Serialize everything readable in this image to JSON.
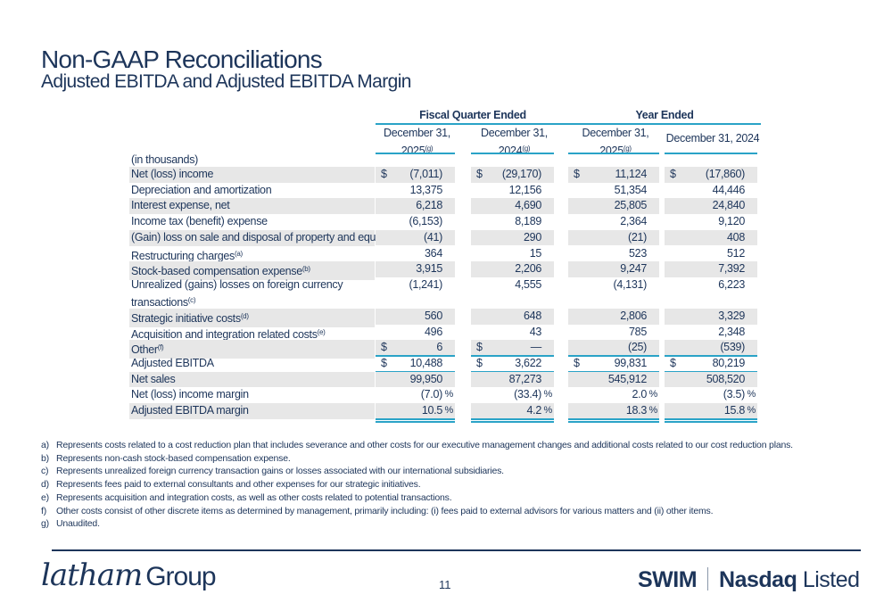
{
  "title": "Non-GAAP Reconciliations",
  "subtitle": "Adjusted EBITDA and Adjusted EBITDA Margin",
  "groups": {
    "quarter": "Fiscal Quarter Ended",
    "year": "Year Ended"
  },
  "columns": [
    {
      "line1": "December 31,",
      "line2": "2025",
      "sup": "(g)"
    },
    {
      "line1": "December 31,",
      "line2": "2024",
      "sup": "(g)"
    },
    {
      "line1": "December 31,",
      "line2": "2025",
      "sup": "(g)"
    },
    {
      "line1": "December 31, 2024",
      "line2": "",
      "sup": ""
    }
  ],
  "units_label": "(in thousands)",
  "rows": [
    {
      "label": "Net (loss) income",
      "sup": "",
      "values": [
        "(7,011)",
        "(29,170)",
        "11,124",
        "(17,860)"
      ],
      "dollar": [
        true,
        true,
        true,
        true
      ]
    },
    {
      "label": "Depreciation and amortization",
      "sup": "",
      "values": [
        "13,375",
        "12,156",
        "51,354",
        "44,446"
      ]
    },
    {
      "label": "Interest expense, net",
      "sup": "",
      "values": [
        "6,218",
        "4,690",
        "25,805",
        "24,840"
      ]
    },
    {
      "label": "Income tax (benefit) expense",
      "sup": "",
      "values": [
        "(6,153)",
        "8,189",
        "2,364",
        "9,120"
      ]
    },
    {
      "label": "(Gain) loss on sale and disposal of property and equipment",
      "sup": "",
      "values": [
        "(41)",
        "290",
        "(21)",
        "408"
      ]
    },
    {
      "label": "Restructuring charges",
      "sup": "(a)",
      "values": [
        "364",
        "15",
        "523",
        "512"
      ]
    },
    {
      "label": "Stock-based compensation expense",
      "sup": "(b)",
      "values": [
        "3,915",
        "2,206",
        "9,247",
        "7,392"
      ]
    },
    {
      "label": "Unrealized (gains) losses on foreign currency transactions",
      "sup": "(c)",
      "values": [
        "(1,241)",
        "4,555",
        "(4,131)",
        "6,223"
      ]
    },
    {
      "label": "Strategic initiative costs",
      "sup": "(d)",
      "values": [
        "560",
        "648",
        "2,806",
        "3,329"
      ]
    },
    {
      "label": "Acquisition and integration related costs",
      "sup": "(e)",
      "values": [
        "496",
        "43",
        "785",
        "2,348"
      ]
    },
    {
      "label": "Other",
      "sup": "(f)",
      "values": [
        "6",
        "—",
        "(25)",
        "(539)"
      ],
      "dollar": [
        true,
        true,
        false,
        false
      ]
    },
    {
      "label": "Adjusted EBITDA",
      "sup": "",
      "values": [
        "10,488",
        "3,622",
        "99,831",
        "80,219"
      ],
      "dollar": [
        true,
        true,
        true,
        true
      ]
    },
    {
      "label": "Net sales",
      "sup": "",
      "values": [
        "99,950",
        "87,273",
        "545,912",
        "508,520"
      ]
    },
    {
      "label": "Net (loss) income margin",
      "sup": "",
      "values": [
        "(7.0)",
        "(33.4)",
        "2.0",
        "(3.5)"
      ],
      "percent": true
    },
    {
      "label": "Adjusted EBITDA margin",
      "sup": "",
      "values": [
        "10.5",
        "4.2",
        "18.3",
        "15.8"
      ],
      "percent": true
    }
  ],
  "currency_symbol": "$",
  "percent_symbol": "%",
  "footnotes": [
    {
      "key": "a)",
      "text": "Represents costs related to a cost reduction plan that includes severance and other costs for our executive management changes and additional costs related to our cost reduction plans."
    },
    {
      "key": "b)",
      "text": "Represents non-cash stock-based compensation expense."
    },
    {
      "key": "c)",
      "text": "Represents unrealized foreign currency transaction gains or losses associated with our international subsidiaries."
    },
    {
      "key": "d)",
      "text": "Represents fees paid to external consultants and other expenses for our strategic initiatives."
    },
    {
      "key": "e)",
      "text": "Represents acquisition and integration costs, as well as other costs related to potential transactions."
    },
    {
      "key": "f)",
      "text": "Other costs consist of other discrete items as determined by management, primarily including: (i) fees paid to external advisors for various matters and (ii) other items."
    },
    {
      "key": "g)",
      "text": "Unaudited."
    }
  ],
  "footer": {
    "logo_script": "latham",
    "logo_word": "Group",
    "page": "11",
    "ticker": "SWIM",
    "exchange_bold": "Nasdaq",
    "exchange_light": "Listed"
  },
  "colors": {
    "text": "#1d355a",
    "accent": "#2aa3c7",
    "shade": "#e7e7e7"
  }
}
